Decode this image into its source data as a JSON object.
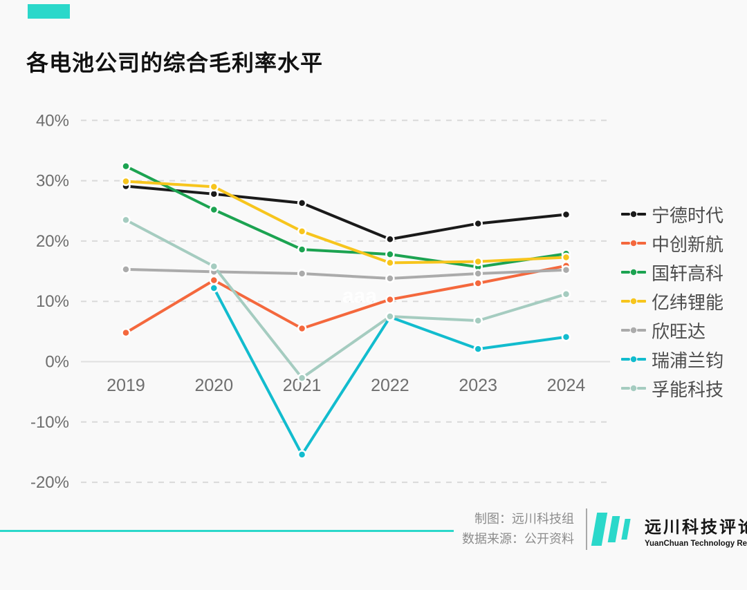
{
  "accent_color": "#2bd8ca",
  "header": {
    "title": "各电池公司的综合毛利率水平"
  },
  "chart_data": {
    "type": "line",
    "title": "各电池公司的综合毛利率水平",
    "x": [
      "2019",
      "2020",
      "2021",
      "2022",
      "2023",
      "2024"
    ],
    "y_ticks": [
      "40%",
      "30%",
      "20%",
      "10%",
      "0%",
      "-10%",
      "-20%"
    ],
    "ylim": [
      -20,
      40
    ],
    "grid": "horizontal dashed, solid zero line",
    "legend_position": "right",
    "watermark": "aaa",
    "series": [
      {
        "name": "宁德时代",
        "color": "#1a1a1a",
        "values": [
          29.1,
          27.8,
          26.3,
          20.3,
          22.9,
          24.4
        ]
      },
      {
        "name": "中创新航",
        "color": "#f4683d",
        "values": [
          4.8,
          13.5,
          5.5,
          10.3,
          13.0,
          15.9
        ]
      },
      {
        "name": "国轩高科",
        "color": "#1ca351",
        "values": [
          32.4,
          25.2,
          18.6,
          17.8,
          15.7,
          17.9
        ]
      },
      {
        "name": "亿纬锂能",
        "color": "#f7c51d",
        "values": [
          29.9,
          29.0,
          21.6,
          16.4,
          16.6,
          17.3
        ]
      },
      {
        "name": "欣旺达",
        "color": "#ababab",
        "values": [
          15.3,
          14.9,
          14.6,
          13.8,
          14.6,
          15.2
        ]
      },
      {
        "name": "瑞浦兰钧",
        "color": "#12bcce",
        "values": [
          null,
          12.2,
          -15.4,
          7.4,
          2.1,
          4.1
        ]
      },
      {
        "name": "孚能科技",
        "color": "#a5ccc0",
        "values": [
          23.5,
          15.8,
          -2.7,
          7.5,
          6.8,
          11.2
        ]
      }
    ]
  },
  "footer": {
    "credit_line1": "制图：远川科技组",
    "credit_line2": "数据来源：公开资料",
    "logo_title": "远川科技评论",
    "logo_subtitle": "YuanChuan Technology Review"
  }
}
